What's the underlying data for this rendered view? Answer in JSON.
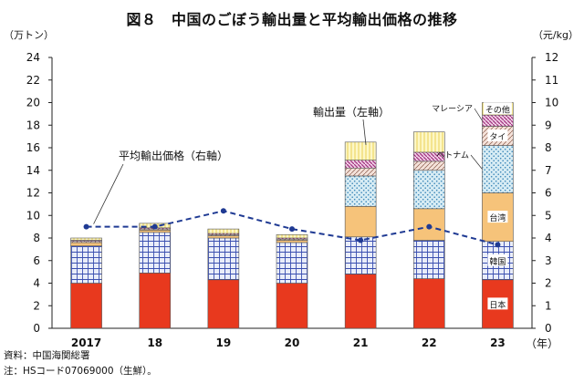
{
  "title": "図８　中国のごぼう輸出量と平均輸出価格の推移",
  "left_axis_unit": "（万トン）",
  "right_axis_unit": "（元/kg）",
  "x_axis_suffix": "（年）",
  "source_line": "資料：中国海関総署",
  "note_line": "注：HSコード07069000（生鮮）。",
  "colors": {
    "日本": "#e8391e",
    "韓国": "#3a4fb0",
    "台湾": "#f6c37a",
    "ベトナム": "#b7dbe9",
    "タイ": "#e7cbbf",
    "マレーシア": "#a0307e",
    "その他": "#fbf2a6",
    "line": "#1f3a93"
  },
  "chart_data": {
    "type": "bar",
    "stacked": true,
    "categories": [
      "2017",
      "18",
      "19",
      "20",
      "21",
      "22",
      "23"
    ],
    "series": [
      {
        "name": "日本",
        "values": [
          4.0,
          4.9,
          4.3,
          4.0,
          4.8,
          4.4,
          4.3
        ]
      },
      {
        "name": "韓国",
        "values": [
          3.3,
          3.6,
          3.7,
          3.6,
          3.3,
          3.4,
          3.4
        ]
      },
      {
        "name": "台湾",
        "values": [
          0.3,
          0.2,
          0.2,
          0.2,
          2.7,
          2.8,
          4.3
        ]
      },
      {
        "name": "ベトナム",
        "values": [
          0.0,
          0.0,
          0.0,
          0.0,
          2.7,
          3.4,
          4.2
        ]
      },
      {
        "name": "タイ",
        "values": [
          0.1,
          0.1,
          0.1,
          0.1,
          0.7,
          0.8,
          1.7
        ]
      },
      {
        "name": "マレーシア",
        "values": [
          0.1,
          0.1,
          0.1,
          0.1,
          0.7,
          0.8,
          1.0
        ]
      },
      {
        "name": "その他",
        "values": [
          0.2,
          0.4,
          0.4,
          0.3,
          1.6,
          1.8,
          1.1
        ]
      }
    ],
    "line_series": {
      "name": "平均輸出価格",
      "axis": "right",
      "values": [
        4.5,
        4.5,
        5.2,
        4.4,
        3.9,
        4.5,
        3.7
      ]
    },
    "ylim_left": [
      0,
      24
    ],
    "ylim_right": [
      0,
      12
    ],
    "yticks_left": [
      0,
      2,
      4,
      6,
      8,
      10,
      12,
      14,
      16,
      18,
      20,
      22,
      24
    ],
    "yticks_right": [
      0,
      1,
      2,
      3,
      4,
      5,
      6,
      7,
      8,
      9,
      10,
      11,
      12
    ],
    "annotations": {
      "bars": "輸出量（左軸）",
      "line": "平均輸出価格（右軸）"
    },
    "segment_labels": {
      "その他": "その他",
      "マレーシア": "マレーシア",
      "タイ": "タイ",
      "ベトナム": "ベトナム",
      "台湾": "台湾",
      "韓国": "韓国",
      "日本": "日本"
    }
  }
}
